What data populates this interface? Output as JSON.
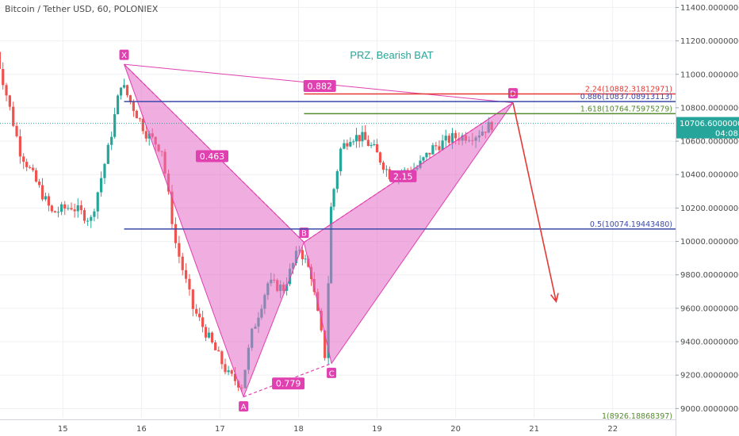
{
  "header": {
    "title": "Bitcoin / Tether USD, 60, POLONIEX"
  },
  "annotation": "PRZ, Bearish BAT",
  "colors": {
    "up": "#26a69a",
    "down": "#ef5350",
    "pattern": "#e040b0",
    "pattern_fill": "#e26bc4",
    "fib_red": "#e53935",
    "fib_blue": "#3949ab",
    "fib_green": "#558b2f",
    "arrow": "#e53935",
    "price_line": "#26a69a"
  },
  "chart_data": {
    "type": "candlestick",
    "title": "Bitcoin / Tether USD, 60, POLONIEX",
    "xlabel": "",
    "ylabel": "",
    "x_ticks": [
      {
        "label": "15",
        "t": 15
      },
      {
        "label": "16",
        "t": 16
      },
      {
        "label": "17",
        "t": 17
      },
      {
        "label": "18",
        "t": 18
      },
      {
        "label": "19",
        "t": 19
      },
      {
        "label": "20",
        "t": 20
      },
      {
        "label": "21",
        "t": 21
      },
      {
        "label": "22",
        "t": 22
      }
    ],
    "y_ticks": [
      "9000.00000000",
      "9200.00000000",
      "9400.00000000",
      "9600.00000000",
      "9800.00000000",
      "10000.00000000",
      "10200.00000000",
      "10400.00000000",
      "10600.00000000",
      "10800.00000000",
      "11000.00000000",
      "11200.00000000",
      "11400.00000000"
    ],
    "ylim": [
      8940,
      11440
    ],
    "xlim": [
      14.2,
      22.8
    ],
    "grid": true,
    "current_price": {
      "label": "10706.60000001",
      "value": 10706.6,
      "countdown": "04:08"
    },
    "candle_anchors": [
      [
        14.15,
        11220
      ],
      [
        14.5,
        10540
      ],
      [
        14.9,
        10170
      ],
      [
        15.15,
        10210
      ],
      [
        15.4,
        10130
      ],
      [
        15.62,
        10550
      ],
      [
        15.78,
        10950
      ],
      [
        16.1,
        10650
      ],
      [
        16.3,
        10550
      ],
      [
        16.48,
        9990
      ],
      [
        16.7,
        9600
      ],
      [
        16.9,
        9420
      ],
      [
        17.15,
        9200
      ],
      [
        17.32,
        9140
      ],
      [
        17.45,
        9450
      ],
      [
        17.65,
        9750
      ],
      [
        17.85,
        9720
      ],
      [
        18.05,
        9960
      ],
      [
        18.2,
        9800
      ],
      [
        18.38,
        9320
      ],
      [
        18.45,
        10200
      ],
      [
        18.58,
        10550
      ],
      [
        18.7,
        10630
      ],
      [
        18.85,
        10620
      ],
      [
        19.0,
        10550
      ],
      [
        19.2,
        10400
      ],
      [
        19.35,
        10410
      ],
      [
        19.55,
        10440
      ],
      [
        19.75,
        10560
      ],
      [
        20.0,
        10620
      ],
      [
        20.3,
        10640
      ],
      [
        20.5,
        10700
      ]
    ],
    "pattern": {
      "name": "Bearish BAT",
      "points": [
        {
          "label": "X",
          "t": 15.78,
          "price": 11060
        },
        {
          "label": "A",
          "t": 17.3,
          "price": 9070
        },
        {
          "label": "B",
          "t": 18.07,
          "price": 9995
        },
        {
          "label": "C",
          "t": 18.42,
          "price": 9270
        },
        {
          "label": "D",
          "t": 20.73,
          "price": 10830
        }
      ],
      "ratios": [
        {
          "label": "0.463",
          "t": 16.9,
          "price": 10510
        },
        {
          "label": "0.779",
          "t": 17.87,
          "price": 9150
        },
        {
          "label": "0.882",
          "t": 18.27,
          "price": 10930
        },
        {
          "label": "2.15",
          "t": 19.33,
          "price": 10390
        }
      ]
    },
    "levels": [
      {
        "label": "2.24(10882.31812971)",
        "price": 10882.31812971,
        "t_start": 18.07,
        "color": "red"
      },
      {
        "label": "0.886(10837.08913113)",
        "price": 10837.08913113,
        "t_start": 15.78,
        "color": "blue"
      },
      {
        "label": "1.618(10764.75975279)",
        "price": 10764.75975279,
        "t_start": 18.07,
        "color": "green"
      },
      {
        "label": "0.5(10074.19443480)",
        "price": 10074.1944348,
        "t_start": 15.78,
        "color": "blue"
      },
      {
        "label": "1(8926.18868397)",
        "price": 8926.18868397,
        "t_start": 17.3,
        "color": "green"
      }
    ],
    "projection": {
      "from": {
        "t": 20.73,
        "price": 10830
      },
      "to": {
        "t": 21.28,
        "price": 9640
      }
    }
  }
}
